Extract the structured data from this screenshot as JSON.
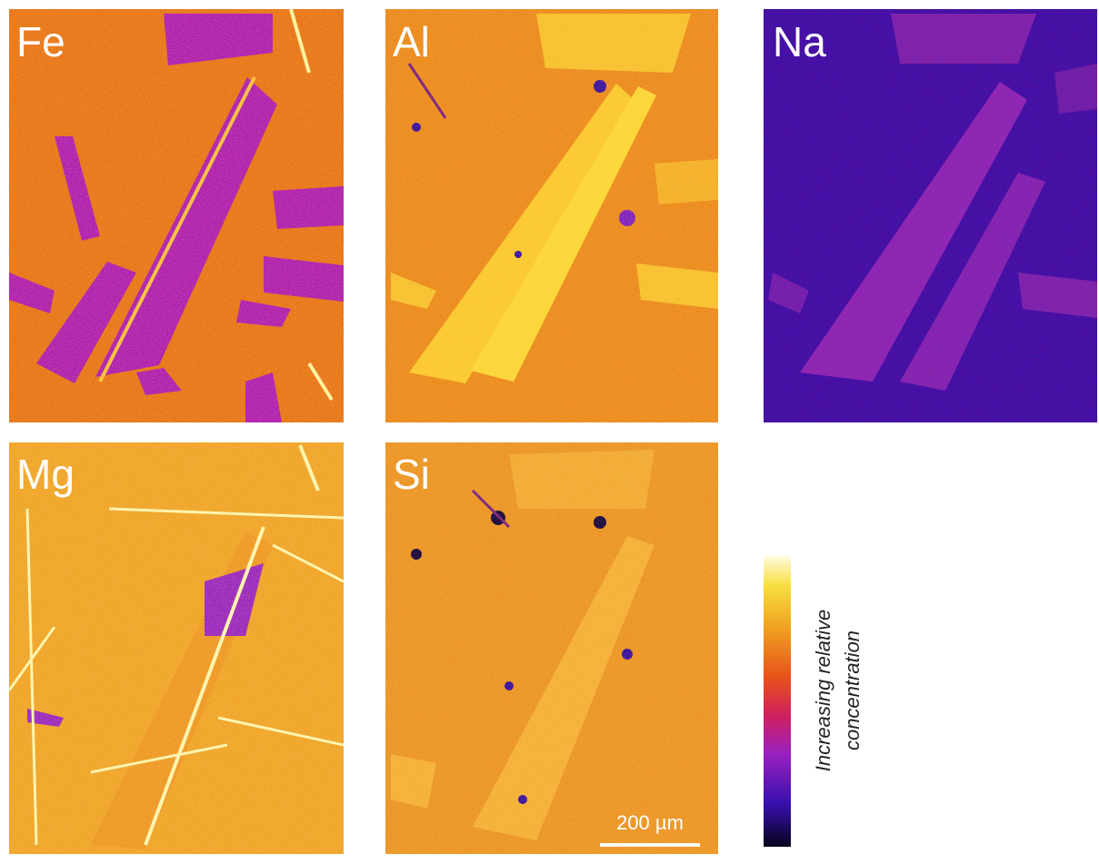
{
  "panels": [
    {
      "label": "Fe"
    },
    {
      "label": "Al"
    },
    {
      "label": "Na"
    },
    {
      "label": "Mg"
    },
    {
      "label": "Si"
    }
  ],
  "scale_bar": {
    "label": "200 µm"
  },
  "colorbar": {
    "label_lines": [
      "Increasing relative",
      "concentration"
    ]
  }
}
